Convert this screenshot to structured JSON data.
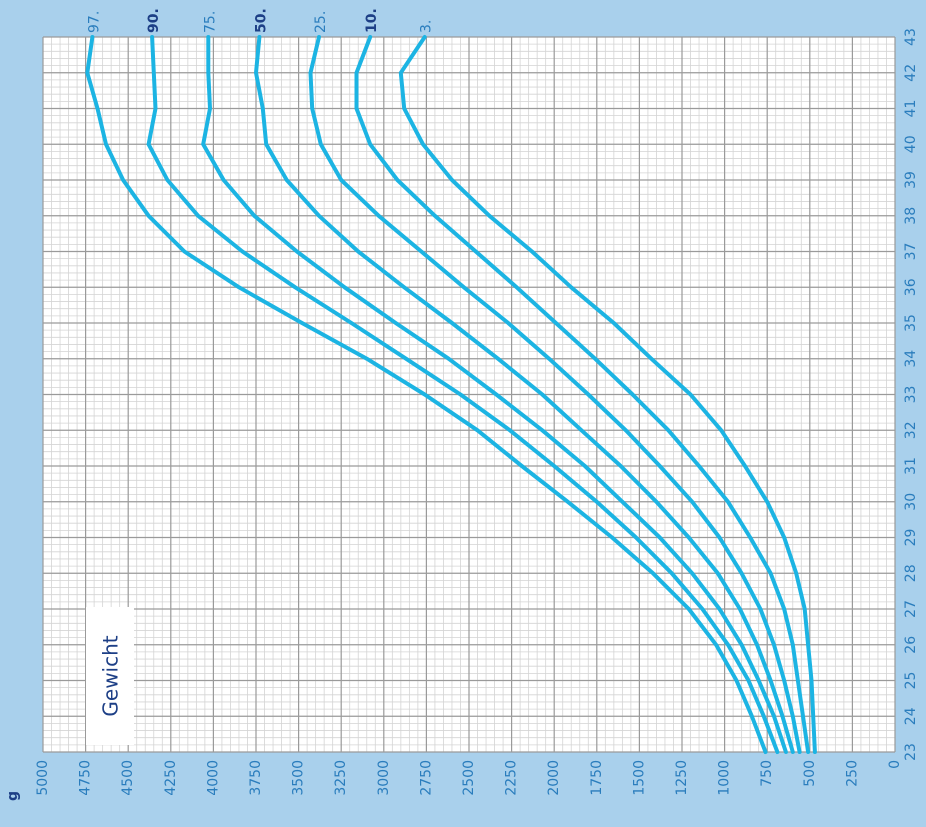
{
  "colors": {
    "background": "#a9d0ec",
    "grid_bg": "#ffffff",
    "grid_minor": "#d4d4d4",
    "grid_major": "#9a9a9a",
    "curve": "#1cb4e3",
    "label_light": "#2a7dbd",
    "label_bold": "#1d3f86",
    "title_text": "#1d3f86"
  },
  "chart_data": {
    "type": "line",
    "title": "Gewicht",
    "weight_unit": "g",
    "x": [
      23,
      24,
      25,
      26,
      27,
      28,
      29,
      30,
      31,
      32,
      33,
      34,
      35,
      36,
      37,
      38,
      39,
      40,
      41,
      42,
      43
    ],
    "xlim": [
      23,
      43
    ],
    "ylim": [
      0,
      5000
    ],
    "x_ticks": [
      "23",
      "24",
      "25",
      "26",
      "27",
      "28",
      "29",
      "30",
      "31",
      "32",
      "33",
      "34",
      "35",
      "36",
      "37",
      "38",
      "39",
      "40",
      "41",
      "42",
      "43"
    ],
    "y_ticks": [
      "0",
      "250",
      "500",
      "750",
      "1000",
      "1250",
      "1500",
      "1750",
      "2000",
      "2250",
      "2500",
      "2750",
      "3000",
      "3250",
      "3500",
      "3750",
      "4000",
      "4250",
      "4500",
      "4750",
      "5000"
    ],
    "orientation": "rotated-90-ccw",
    "grid": true,
    "series": [
      {
        "name": "3.",
        "bold": false,
        "values": [
          470,
          480,
          490,
          510,
          530,
          580,
          650,
          750,
          880,
          1020,
          1200,
          1430,
          1650,
          1900,
          2130,
          2380,
          2600,
          2770,
          2880,
          2900,
          2760
        ]
      },
      {
        "name": "10.",
        "bold": true,
        "values": [
          510,
          540,
          570,
          600,
          650,
          730,
          850,
          980,
          1150,
          1330,
          1540,
          1760,
          1990,
          2220,
          2460,
          2700,
          2920,
          3080,
          3160,
          3160,
          3080
        ]
      },
      {
        "name": "25.",
        "bold": false,
        "values": [
          560,
          600,
          650,
          710,
          790,
          900,
          1030,
          1190,
          1380,
          1580,
          1800,
          2030,
          2270,
          2530,
          2780,
          3030,
          3250,
          3370,
          3420,
          3430,
          3380
        ]
      },
      {
        "name": "50.",
        "bold": true,
        "values": [
          600,
          660,
          730,
          810,
          910,
          1040,
          1210,
          1400,
          1610,
          1840,
          2070,
          2330,
          2600,
          2880,
          3150,
          3380,
          3570,
          3690,
          3710,
          3750,
          3730
        ]
      },
      {
        "name": "75.",
        "bold": false,
        "values": [
          640,
          710,
          800,
          900,
          1030,
          1190,
          1380,
          1600,
          1820,
          2070,
          2340,
          2620,
          2930,
          3230,
          3510,
          3760,
          3940,
          4060,
          4020,
          4030,
          4030
        ]
      },
      {
        "name": "90.",
        "bold": true,
        "values": [
          690,
          770,
          860,
          980,
          1130,
          1310,
          1520,
          1750,
          2000,
          2260,
          2550,
          2870,
          3190,
          3520,
          3830,
          4090,
          4270,
          4380,
          4340,
          4350,
          4360
        ]
      },
      {
        "name": "97.",
        "bold": false,
        "values": [
          760,
          840,
          930,
          1050,
          1210,
          1420,
          1660,
          1920,
          2190,
          2450,
          2760,
          3100,
          3480,
          3850,
          4170,
          4380,
          4530,
          4630,
          4680,
          4740,
          4710
        ]
      }
    ]
  }
}
